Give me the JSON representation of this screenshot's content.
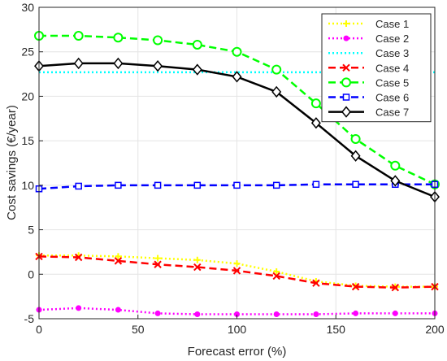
{
  "chart_data": {
    "type": "line",
    "xlabel": "Forecast error (%)",
    "ylabel": "Cost savings (€/year)",
    "xlim": [
      0,
      200
    ],
    "ylim": [
      -5,
      30
    ],
    "xticks": [
      0,
      50,
      100,
      150,
      200
    ],
    "yticks": [
      -5,
      0,
      5,
      10,
      15,
      20,
      25,
      30
    ],
    "grid": true,
    "legend_position": "top-right",
    "x": [
      0,
      20,
      40,
      60,
      80,
      100,
      120,
      140,
      160,
      180,
      200
    ],
    "series": [
      {
        "name": "Case 1",
        "color": "#ffff00",
        "dash": "dotted",
        "marker": "plus",
        "marker_x": [
          0,
          20,
          40,
          60,
          80,
          100,
          120,
          140,
          160,
          180,
          200
        ],
        "values": [
          2.1,
          2.1,
          2.0,
          1.8,
          1.6,
          1.2,
          0.3,
          -0.8,
          -1.3,
          -1.4,
          -1.4
        ]
      },
      {
        "name": "Case 2",
        "color": "#ff00ff",
        "dash": "dotted",
        "marker": "dot",
        "marker_x": [
          0,
          20,
          40,
          60,
          80,
          100,
          120,
          140,
          160,
          180,
          200
        ],
        "values": [
          -4.0,
          -3.8,
          -4.0,
          -4.4,
          -4.5,
          -4.5,
          -4.5,
          -4.5,
          -4.4,
          -4.4,
          -4.4
        ]
      },
      {
        "name": "Case 3",
        "color": "#00ffff",
        "dash": "dotted",
        "marker": "none",
        "marker_x": [],
        "values": [
          22.7,
          22.7,
          22.7,
          22.7,
          22.7,
          22.7,
          22.7,
          22.7,
          22.7,
          22.7,
          22.7
        ]
      },
      {
        "name": "Case 4",
        "color": "#ff0000",
        "dash": "dashed",
        "marker": "x",
        "marker_x": [
          0,
          20,
          40,
          60,
          80,
          100,
          120,
          140,
          160,
          180,
          200
        ],
        "values": [
          2.0,
          1.9,
          1.5,
          1.1,
          0.8,
          0.4,
          -0.2,
          -1.0,
          -1.4,
          -1.5,
          -1.4
        ]
      },
      {
        "name": "Case 5",
        "color": "#00ff00",
        "dash": "dashed",
        "marker": "circle",
        "marker_x": [
          0,
          20,
          40,
          60,
          80,
          100,
          120,
          140,
          160,
          180,
          200
        ],
        "values": [
          26.8,
          26.8,
          26.6,
          26.3,
          25.8,
          25.0,
          23.0,
          19.2,
          15.2,
          12.2,
          10.1
        ]
      },
      {
        "name": "Case 6",
        "color": "#0000ff",
        "dash": "dashed",
        "marker": "square",
        "marker_x": [
          0,
          20,
          40,
          60,
          80,
          100,
          120,
          140,
          160,
          180,
          200
        ],
        "values": [
          9.6,
          9.9,
          10.0,
          10.0,
          10.0,
          10.0,
          10.0,
          10.1,
          10.1,
          10.1,
          10.1
        ]
      },
      {
        "name": "Case 7",
        "color": "#000000",
        "dash": "solid",
        "marker": "diamond",
        "marker_x": [
          0,
          20,
          40,
          60,
          80,
          100,
          120,
          140,
          160,
          180,
          200
        ],
        "values": [
          23.4,
          23.7,
          23.7,
          23.4,
          23.0,
          22.2,
          20.5,
          17.0,
          13.3,
          10.5,
          8.7
        ]
      }
    ]
  }
}
